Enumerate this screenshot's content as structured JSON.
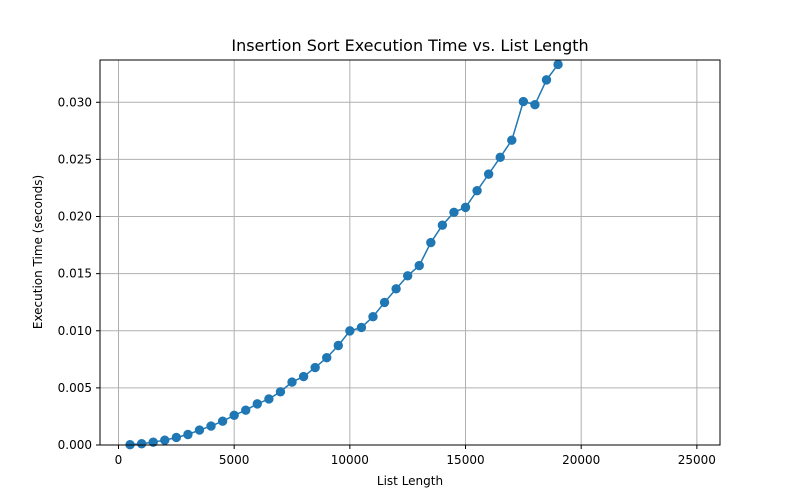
{
  "chart_data": {
    "type": "line",
    "title": "Insertion Sort Execution Time vs. List Length",
    "xlabel": "List Length",
    "ylabel": "Execution Time (seconds)",
    "xlim": [
      -800,
      26000
    ],
    "ylim": [
      0.0,
      0.0337
    ],
    "x_ticks": [
      0,
      5000,
      10000,
      15000,
      20000,
      25000
    ],
    "x_tick_labels": [
      "0",
      "5000",
      "10000",
      "15000",
      "20000",
      "25000"
    ],
    "y_ticks": [
      0.0,
      0.005,
      0.01,
      0.015,
      0.02,
      0.025,
      0.03
    ],
    "y_tick_labels": [
      "0.000",
      "0.005",
      "0.010",
      "0.015",
      "0.020",
      "0.025",
      "0.030"
    ],
    "grid": true,
    "series": [
      {
        "color": "#1f77b4",
        "marker": "circle",
        "x": [
          500,
          1000,
          1500,
          2000,
          2500,
          3000,
          3500,
          4000,
          4500,
          5000,
          5500,
          6000,
          6500,
          7000,
          7500,
          8000,
          8500,
          9000,
          9500,
          10000,
          10500,
          11000,
          11500,
          12000,
          12500,
          13000,
          13500,
          14000,
          14500,
          15000,
          15500,
          16000,
          16500,
          17000,
          17500,
          18000,
          18500,
          19000
        ],
        "values": [
          3e-05,
          0.00011,
          0.00025,
          0.00042,
          0.00066,
          0.00092,
          0.00131,
          0.00166,
          0.00208,
          0.0026,
          0.00305,
          0.0036,
          0.00403,
          0.00466,
          0.00551,
          0.00599,
          0.00678,
          0.00764,
          0.00871,
          0.00999,
          0.01029,
          0.01123,
          0.01248,
          0.01367,
          0.01481,
          0.01571,
          0.01772,
          0.01924,
          0.02037,
          0.0208,
          0.02226,
          0.02371,
          0.02518,
          0.02668,
          0.03006,
          0.02979,
          0.03196,
          0.03331
        ]
      }
    ]
  }
}
